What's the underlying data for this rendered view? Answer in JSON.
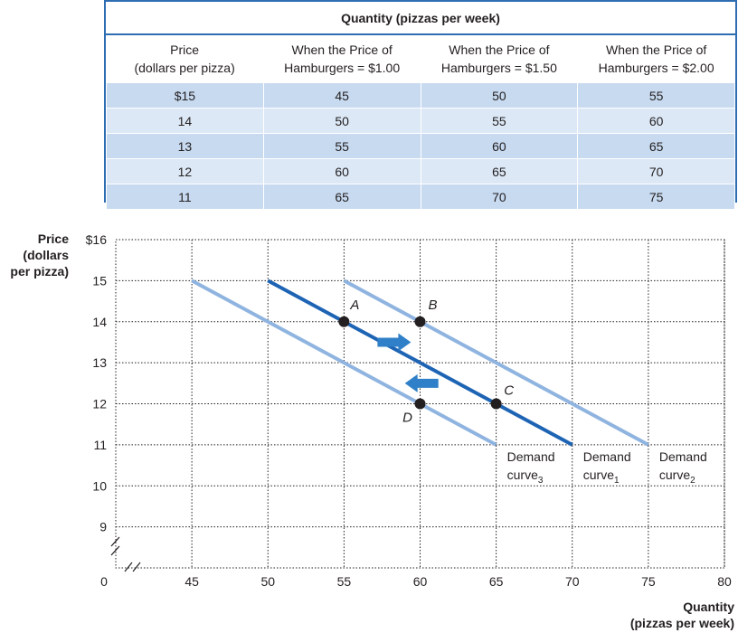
{
  "table": {
    "title": "Quantity (pizzas per week)",
    "headers": [
      [
        "Price",
        "(dollars per pizza)"
      ],
      [
        "When the Price of",
        "Hamburgers = $1.00"
      ],
      [
        "When the Price of",
        "Hamburgers = $1.50"
      ],
      [
        "When the Price of",
        "Hamburgers = $2.00"
      ]
    ],
    "rows": [
      [
        "$15",
        "45",
        "50",
        "55"
      ],
      [
        "14",
        "50",
        "55",
        "60"
      ],
      [
        "13",
        "55",
        "60",
        "65"
      ],
      [
        "12",
        "60",
        "65",
        "70"
      ],
      [
        "11",
        "65",
        "70",
        "75"
      ]
    ]
  },
  "chart_data": {
    "type": "line",
    "ylabel": [
      "Price",
      "(dollars",
      "per pizza)"
    ],
    "xlabel": [
      "Quantity",
      "(pizzas per week)"
    ],
    "xlim": [
      40,
      80
    ],
    "ylim": [
      8,
      16
    ],
    "origin_label": "0",
    "xticks": [
      {
        "v": 45,
        "label": "45"
      },
      {
        "v": 50,
        "label": "50"
      },
      {
        "v": 55,
        "label": "55"
      },
      {
        "v": 60,
        "label": "60"
      },
      {
        "v": 65,
        "label": "65"
      },
      {
        "v": 70,
        "label": "70"
      },
      {
        "v": 75,
        "label": "75"
      },
      {
        "v": 80,
        "label": "80"
      }
    ],
    "yticks": [
      {
        "v": 9,
        "label": "9"
      },
      {
        "v": 10,
        "label": "10"
      },
      {
        "v": 11,
        "label": "11"
      },
      {
        "v": 12,
        "label": "12"
      },
      {
        "v": 13,
        "label": "13"
      },
      {
        "v": 14,
        "label": "14"
      },
      {
        "v": 15,
        "label": "15"
      },
      {
        "v": 16,
        "label": "$16"
      }
    ],
    "grid": true,
    "series": [
      {
        "key": "d3",
        "label": [
          "Demand",
          "curve",
          "3"
        ],
        "color": "#8fb4e0",
        "points": [
          [
            45,
            15
          ],
          [
            65,
            11
          ]
        ]
      },
      {
        "key": "d1",
        "label": [
          "Demand",
          "curve",
          "1"
        ],
        "color": "#1e64b4",
        "points": [
          [
            50,
            15
          ],
          [
            70,
            11
          ]
        ]
      },
      {
        "key": "d2",
        "label": [
          "Demand",
          "curve",
          "2"
        ],
        "color": "#8fb4e0",
        "points": [
          [
            55,
            15
          ],
          [
            75,
            11
          ]
        ]
      }
    ],
    "points": [
      {
        "label": "A",
        "x": 55,
        "y": 14
      },
      {
        "label": "B",
        "x": 60,
        "y": 14
      },
      {
        "label": "C",
        "x": 65,
        "y": 12
      },
      {
        "label": "D",
        "x": 60,
        "y": 12
      }
    ],
    "arrows": [
      {
        "direction": "right",
        "x_from": 57.2,
        "x_to": 59.4,
        "y": 13.5
      },
      {
        "direction": "left",
        "x_from": 61.2,
        "x_to": 59.0,
        "y": 12.5
      }
    ],
    "arrow_color": "#2f80c8"
  }
}
